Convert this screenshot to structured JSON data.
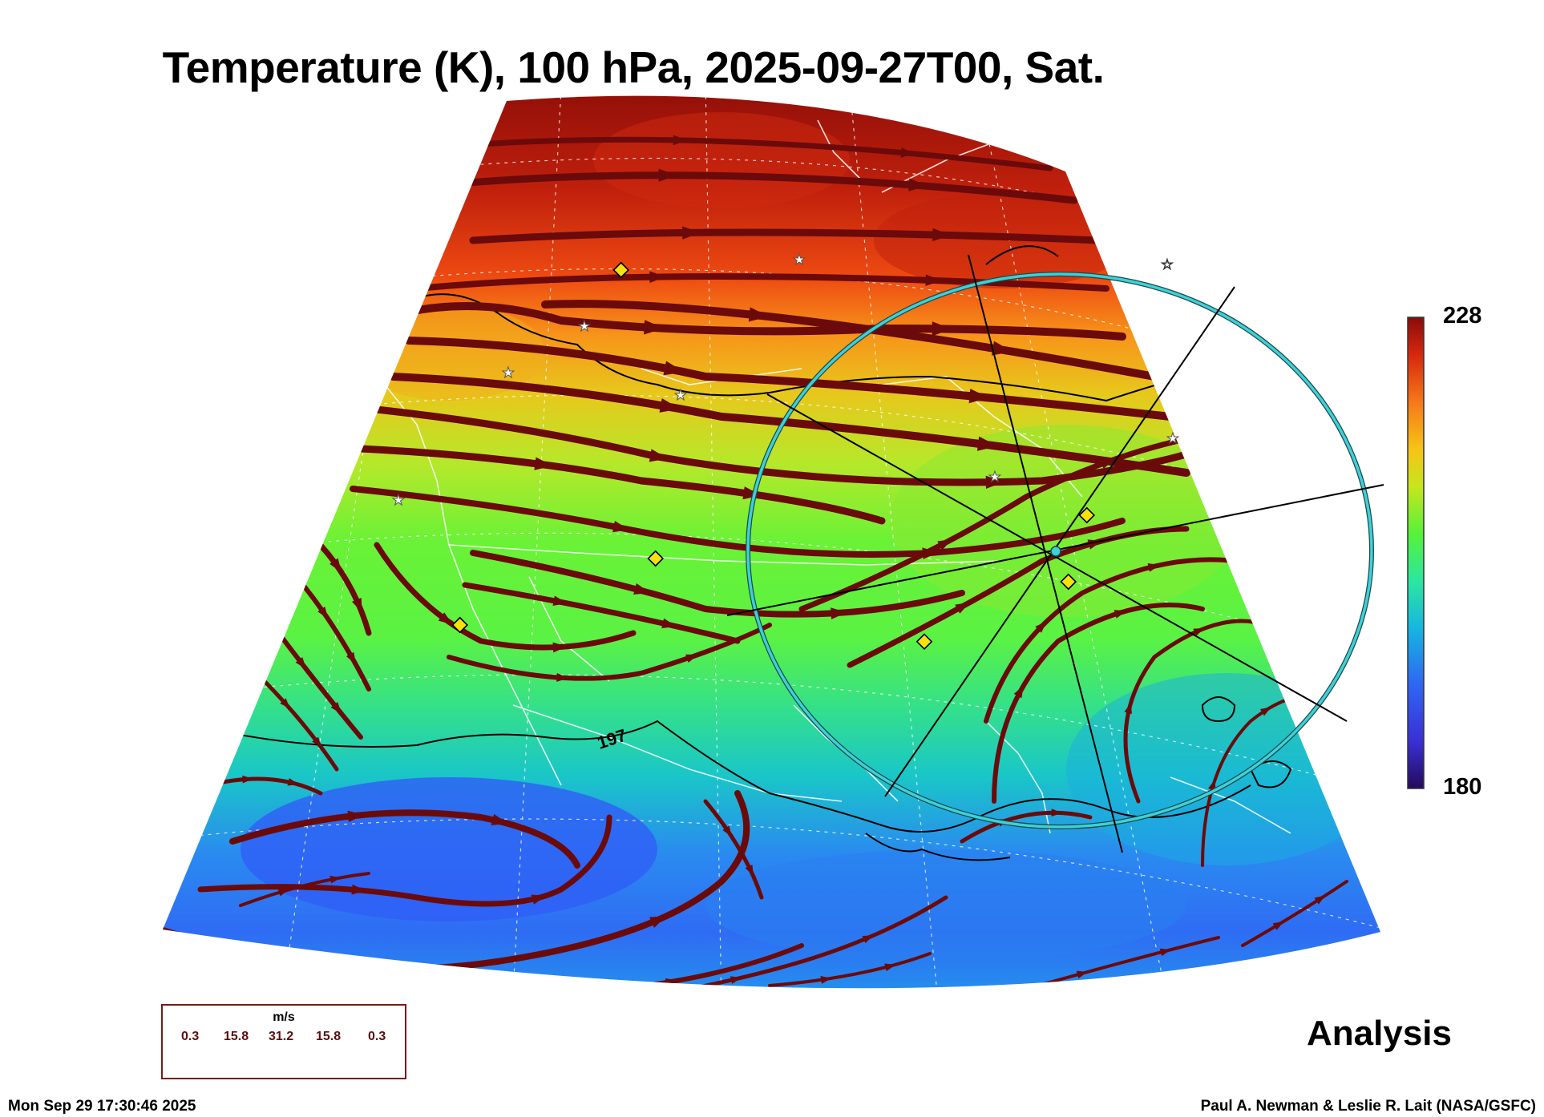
{
  "title": "Temperature (K), 100 hPa, 2025-09-27T00, Sat.",
  "colorbar": {
    "max_label": "228",
    "min_label": "180",
    "colors": [
      "#240a5a",
      "#3a2fd6",
      "#2f66f2",
      "#16b6e0",
      "#2ce6a0",
      "#56f23a",
      "#c6e61e",
      "#f6c418",
      "#f6781a",
      "#d7280e",
      "#880c08"
    ]
  },
  "contour_label": "197",
  "wind_legend": {
    "units": "m/s",
    "values": [
      "0.3",
      "15.8",
      "31.2",
      "15.8",
      "0.3"
    ]
  },
  "analysis_label": "Analysis",
  "footer": {
    "timestamp": "Mon Sep 29 17:30:46 2025",
    "credit": "Paul A. Newman & Leslie R. Lait (NASA/GSFC)"
  },
  "colors": {
    "streamline": "#6b0a0a",
    "circle": "#3fd0d8",
    "marker": "#f6e10a"
  }
}
